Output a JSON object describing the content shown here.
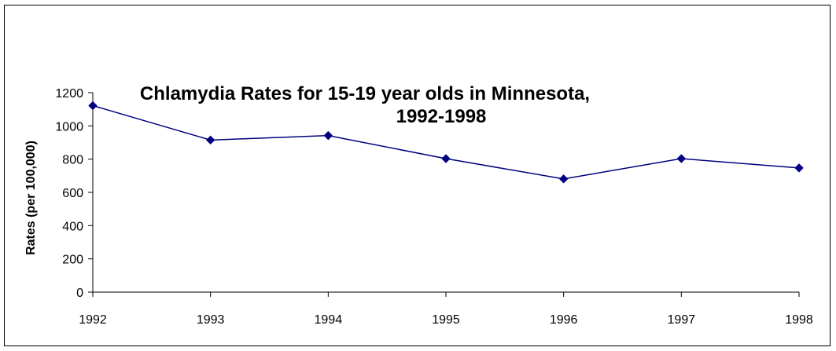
{
  "chart_data": {
    "type": "line",
    "title": "Chlamydia Rates for 15-19 year olds in Minnesota,",
    "title_line2": "1992-1998",
    "xlabel": "",
    "ylabel": "Rates (per 100,000)",
    "x": [
      "1992",
      "1993",
      "1994",
      "1995",
      "1996",
      "1997",
      "1998"
    ],
    "series": [
      {
        "values": [
          1122,
          915,
          942,
          803,
          681,
          803,
          747
        ]
      }
    ],
    "ylim": [
      0,
      1200
    ],
    "yticks": [
      0,
      200,
      400,
      600,
      800,
      1000,
      1200
    ],
    "grid": false,
    "legend": "none",
    "line_color": "#000080",
    "marker": "diamond"
  }
}
